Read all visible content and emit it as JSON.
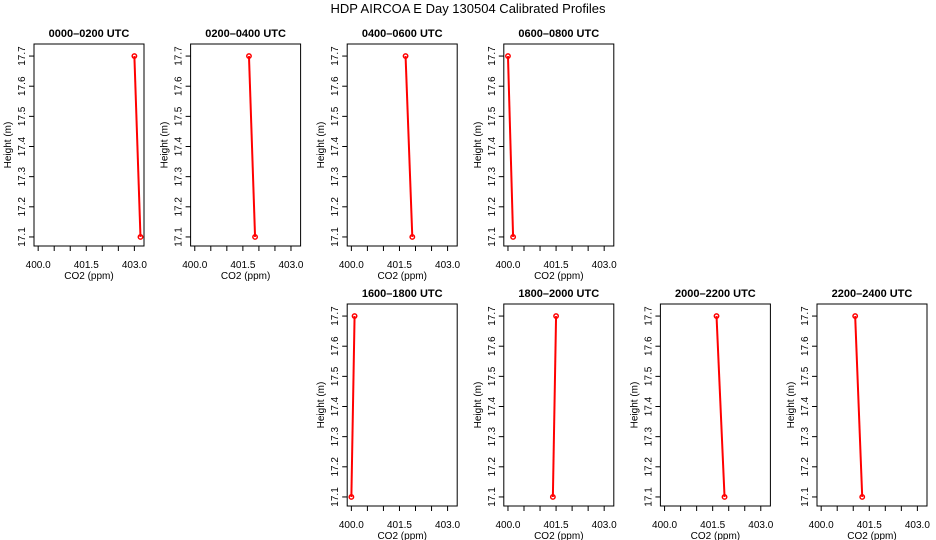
{
  "title": "HDP AIRCOA E  Day 130504  Calibrated Profiles",
  "chart_data": [
    {
      "type": "line",
      "title": "0000–0200 UTC",
      "xlabel": "CO2 (ppm)",
      "ylabel": "Height (m)",
      "xlim": [
        399.87,
        403.3
      ],
      "ylim": [
        17.07,
        17.74
      ],
      "xticks": [
        "400.0",
        "401.5",
        "403.0"
      ],
      "yticks": [
        "17.1",
        "17.2",
        "17.3",
        "17.4",
        "17.5",
        "17.6",
        "17.7"
      ],
      "points": [
        {
          "co2": 403.0,
          "height": 17.7
        },
        {
          "co2": 403.19,
          "height": 17.1
        }
      ]
    },
    {
      "type": "line",
      "title": "0200–0400 UTC",
      "xlabel": "CO2 (ppm)",
      "ylabel": "Height (m)",
      "xlim": [
        399.87,
        403.3
      ],
      "ylim": [
        17.07,
        17.74
      ],
      "xticks": [
        "400.0",
        "401.5",
        "403.0"
      ],
      "yticks": [
        "17.1",
        "17.2",
        "17.3",
        "17.4",
        "17.5",
        "17.6",
        "17.7"
      ],
      "points": [
        {
          "co2": 401.69,
          "height": 17.7
        },
        {
          "co2": 401.88,
          "height": 17.1
        }
      ]
    },
    {
      "type": "line",
      "title": "0400–0600 UTC",
      "xlabel": "CO2 (ppm)",
      "ylabel": "Height (m)",
      "xlim": [
        399.87,
        403.3
      ],
      "ylim": [
        17.07,
        17.74
      ],
      "xticks": [
        "400.0",
        "401.5",
        "403.0"
      ],
      "yticks": [
        "17.1",
        "17.2",
        "17.3",
        "17.4",
        "17.5",
        "17.6",
        "17.7"
      ],
      "points": [
        {
          "co2": 401.69,
          "height": 17.7
        },
        {
          "co2": 401.9,
          "height": 17.1
        }
      ]
    },
    {
      "type": "line",
      "title": "0600–0800 UTC",
      "xlabel": "CO2 (ppm)",
      "ylabel": "Height (m)",
      "xlim": [
        399.87,
        403.3
      ],
      "ylim": [
        17.07,
        17.74
      ],
      "xticks": [
        "400.0",
        "401.5",
        "403.0"
      ],
      "yticks": [
        "17.1",
        "17.2",
        "17.3",
        "17.4",
        "17.5",
        "17.6",
        "17.7"
      ],
      "points": [
        {
          "co2": 400.0,
          "height": 17.7
        },
        {
          "co2": 400.16,
          "height": 17.1
        }
      ]
    },
    {
      "type": "line",
      "title": "1600–1800 UTC",
      "xlabel": "CO2 (ppm)",
      "ylabel": "Height (m)",
      "xlim": [
        399.87,
        403.3
      ],
      "ylim": [
        17.07,
        17.74
      ],
      "xticks": [
        "400.0",
        "401.5",
        "403.0"
      ],
      "yticks": [
        "17.1",
        "17.2",
        "17.3",
        "17.4",
        "17.5",
        "17.6",
        "17.7"
      ],
      "points": [
        {
          "co2": 400.1,
          "height": 17.7
        },
        {
          "co2": 400.0,
          "height": 17.1
        }
      ]
    },
    {
      "type": "line",
      "title": "1800–2000 UTC",
      "xlabel": "CO2 (ppm)",
      "ylabel": "Height (m)",
      "xlim": [
        399.87,
        403.3
      ],
      "ylim": [
        17.07,
        17.74
      ],
      "xticks": [
        "400.0",
        "401.5",
        "403.0"
      ],
      "yticks": [
        "17.1",
        "17.2",
        "17.3",
        "17.4",
        "17.5",
        "17.6",
        "17.7"
      ],
      "points": [
        {
          "co2": 401.5,
          "height": 17.7
        },
        {
          "co2": 401.4,
          "height": 17.1
        }
      ]
    },
    {
      "type": "line",
      "title": "2000–2200 UTC",
      "xlabel": "CO2 (ppm)",
      "ylabel": "Height (m)",
      "xlim": [
        399.87,
        403.3
      ],
      "ylim": [
        17.07,
        17.74
      ],
      "xticks": [
        "400.0",
        "401.5",
        "403.0"
      ],
      "yticks": [
        "17.1",
        "17.2",
        "17.3",
        "17.4",
        "17.5",
        "17.6",
        "17.7"
      ],
      "points": [
        {
          "co2": 401.62,
          "height": 17.7
        },
        {
          "co2": 401.87,
          "height": 17.1
        }
      ]
    },
    {
      "type": "line",
      "title": "2200–2400 UTC",
      "xlabel": "CO2 (ppm)",
      "ylabel": "Height (m)",
      "xlim": [
        399.87,
        403.3
      ],
      "ylim": [
        17.07,
        17.74
      ],
      "xticks": [
        "400.0",
        "401.5",
        "403.0"
      ],
      "yticks": [
        "17.1",
        "17.2",
        "17.3",
        "17.4",
        "17.5",
        "17.6",
        "17.7"
      ],
      "points": [
        {
          "co2": 401.06,
          "height": 17.7
        },
        {
          "co2": 401.28,
          "height": 17.1
        }
      ]
    }
  ],
  "colors": {
    "series": "#ff0000",
    "axis": "#000000"
  }
}
